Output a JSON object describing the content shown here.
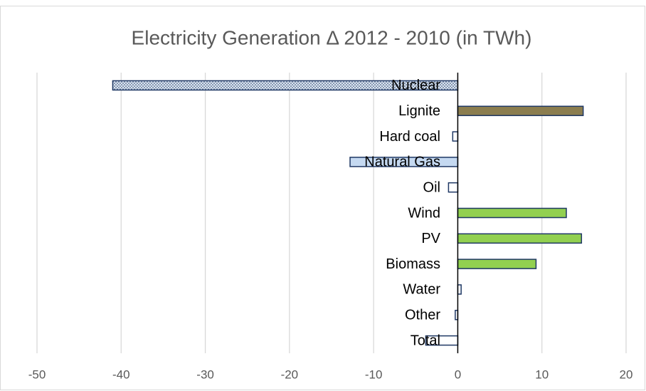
{
  "chart_data": {
    "type": "hbar",
    "title": "Electricity Generation Δ 2012 - 2010 (in TWh)",
    "categories": [
      "Nuclear",
      "Lignite",
      "Hard coal",
      "Natural Gas",
      "Oil",
      "Wind",
      "PV",
      "Biomass",
      "Water",
      "Other",
      "Total"
    ],
    "values": [
      -41.0,
      14.9,
      -0.6,
      -12.8,
      -1.1,
      12.9,
      14.7,
      9.3,
      0.4,
      -0.3,
      -3.8
    ],
    "colors": [
      "#dce6f2",
      "#8b7d4f",
      "#ffffff",
      "#c5d9f1",
      "#ffffff",
      "#92d050",
      "#92d050",
      "#92d050",
      "#ffffff",
      "#ffffff",
      "#ffffff"
    ],
    "dotted": [
      true,
      false,
      false,
      false,
      false,
      false,
      false,
      false,
      false,
      false,
      false
    ],
    "border_color": "#1f3864",
    "xlim": [
      -50,
      20
    ],
    "xticks": [
      -50,
      -40,
      -30,
      -20,
      -10,
      0,
      10,
      20
    ],
    "grid": true
  }
}
